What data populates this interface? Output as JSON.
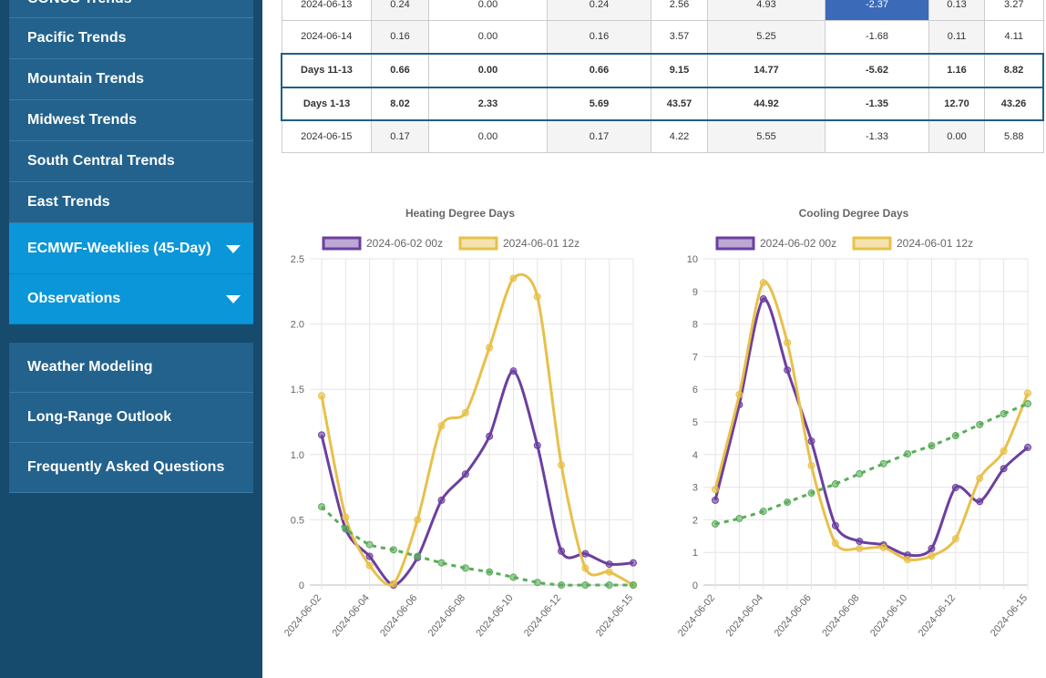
{
  "sidebar": {
    "items": [
      {
        "label": "CONUS Trends",
        "active": false,
        "dropdown": false
      },
      {
        "label": "Pacific Trends",
        "active": false,
        "dropdown": false
      },
      {
        "label": "Mountain Trends",
        "active": false,
        "dropdown": false
      },
      {
        "label": "Midwest Trends",
        "active": false,
        "dropdown": false
      },
      {
        "label": "South Central Trends",
        "active": false,
        "dropdown": false
      },
      {
        "label": "East Trends",
        "active": false,
        "dropdown": false
      },
      {
        "label": "ECMWF-Weeklies (45-Day)",
        "active": true,
        "dropdown": true
      },
      {
        "label": "Observations",
        "active": true,
        "dropdown": true
      }
    ],
    "links": [
      "Weather Modeling",
      "Long-Range Outlook",
      "Frequently Asked Questions"
    ]
  },
  "table": {
    "rows": [
      [
        "2024-06-13",
        "0.24",
        "0.00",
        "0.24",
        "2.56",
        "4.93",
        "-2.37",
        "0.13",
        "3.27"
      ],
      [
        "2024-06-14",
        "0.16",
        "0.00",
        "0.16",
        "3.57",
        "5.25",
        "-1.68",
        "0.11",
        "4.11"
      ],
      [
        "Days 11-13",
        "0.66",
        "0.00",
        "0.66",
        "9.15",
        "14.77",
        "-5.62",
        "1.16",
        "8.82"
      ],
      [
        "Days 1-13",
        "8.02",
        "2.33",
        "5.69",
        "43.57",
        "44.92",
        "-1.35",
        "12.70",
        "43.26"
      ],
      [
        "2024-06-15",
        "0.17",
        "0.00",
        "0.17",
        "4.22",
        "5.55",
        "-1.33",
        "0.00",
        "5.88"
      ]
    ],
    "summary_rows": [
      2,
      3
    ],
    "highlight_cell": [
      0,
      6
    ],
    "highlight_color": "#3a6ab8"
  },
  "chart_data": [
    {
      "type": "line",
      "title": "Heating Degree Days",
      "categories": [
        "2024-06-02",
        null,
        "2024-06-04",
        null,
        "2024-06-06",
        null,
        "2024-06-08",
        null,
        "2024-06-10",
        null,
        "2024-06-12",
        null,
        null,
        "2024-06-15"
      ],
      "series": [
        {
          "name": "2024-06-02 00z",
          "color": "#6b3fa0",
          "values": [
            1.15,
            0.43,
            0.22,
            0.0,
            0.21,
            0.65,
            0.85,
            1.14,
            1.64,
            1.07,
            0.26,
            0.24,
            0.16,
            0.17
          ]
        },
        {
          "name": "2024-06-01 12z",
          "color": "#e8c04a",
          "values": [
            1.45,
            0.52,
            0.15,
            0.01,
            0.5,
            1.22,
            1.32,
            1.82,
            2.35,
            2.21,
            0.92,
            0.13,
            0.1,
            0.0
          ]
        },
        {
          "color": "#5aac5a",
          "dashed": true,
          "values": [
            0.6,
            0.43,
            0.31,
            0.27,
            0.22,
            0.17,
            0.13,
            0.1,
            0.06,
            0.02,
            0.0,
            0.0,
            0.0,
            0.0
          ]
        }
      ],
      "ylim": [
        0,
        2.5
      ],
      "yticks": [
        0,
        0.5,
        {
          "value": 1,
          "label": "1.0"
        },
        1.5,
        {
          "value": 2,
          "label": "2.0"
        },
        2.5
      ],
      "grid": true
    },
    {
      "type": "line",
      "title": "Cooling Degree Days",
      "categories": [
        "2024-06-02",
        null,
        "2024-06-04",
        null,
        "2024-06-06",
        null,
        "2024-06-08",
        null,
        "2024-06-10",
        null,
        "2024-06-12",
        null,
        null,
        "2024-06-15"
      ],
      "series": [
        {
          "name": "2024-06-02 00z",
          "color": "#6b3fa0",
          "values": [
            2.6,
            5.53,
            8.77,
            6.59,
            4.41,
            1.82,
            1.34,
            1.23,
            0.92,
            1.12,
            2.99,
            2.56,
            3.57,
            4.22
          ]
        },
        {
          "name": "2024-06-01 12z",
          "color": "#e8c04a",
          "values": [
            2.93,
            5.84,
            9.27,
            7.43,
            3.66,
            1.28,
            1.12,
            1.15,
            0.78,
            0.89,
            1.42,
            3.27,
            4.11,
            5.88
          ]
        },
        {
          "color": "#5aac5a",
          "dashed": true,
          "values": [
            1.87,
            2.04,
            2.26,
            2.54,
            2.82,
            3.1,
            3.41,
            3.72,
            4.02,
            4.27,
            4.58,
            4.92,
            5.25,
            5.56
          ]
        }
      ],
      "ylim": [
        0,
        10
      ],
      "yticks": [
        0,
        1,
        2,
        3,
        4,
        5,
        6,
        7,
        8,
        9,
        10
      ],
      "grid": true
    }
  ]
}
